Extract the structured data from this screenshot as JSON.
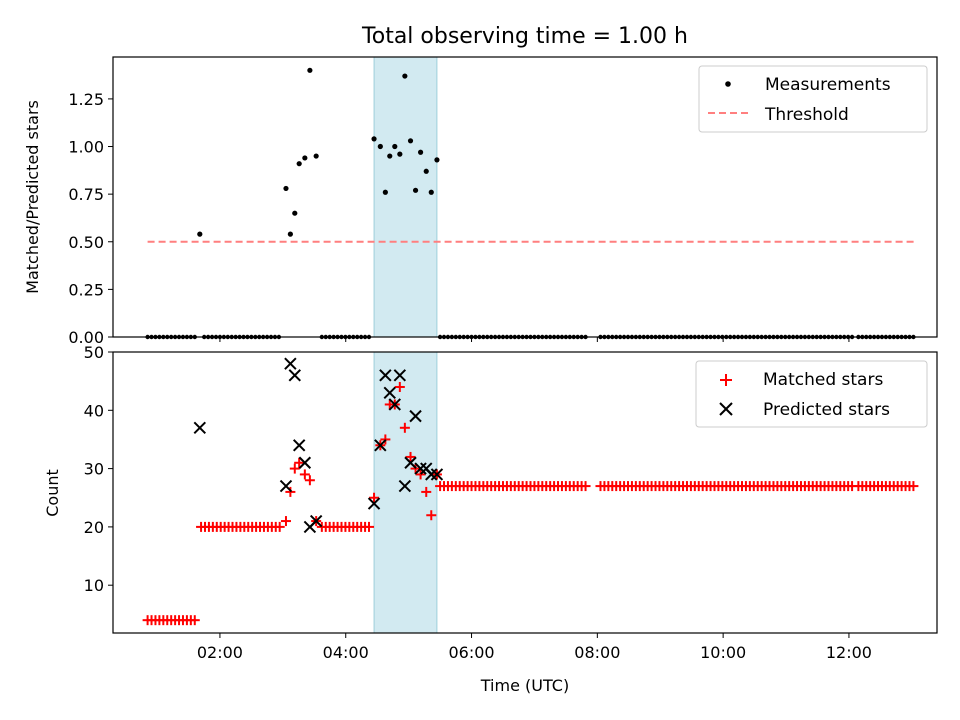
{
  "chart_data": {
    "type": "scatter",
    "title": "Total observing time = 1.00 h",
    "xlabel": "Time (UTC)",
    "x_ticks": [
      "02:00",
      "04:00",
      "06:00",
      "08:00",
      "10:00",
      "12:00"
    ],
    "x_tick_hours": [
      2,
      4,
      6,
      8,
      10,
      12
    ],
    "x_range_hours": [
      0.3,
      13.4
    ],
    "highlight_span_hours": [
      4.45,
      5.45
    ],
    "colors": {
      "highlight": "#add8e6",
      "measurements": "#000000",
      "threshold": "#ff7f7f",
      "matched": "#ff0000",
      "predicted": "#000000"
    },
    "panels": [
      {
        "id": "ratio",
        "ylabel": "Matched/Predicted stars",
        "ylim": [
          0,
          1.47
        ],
        "y_ticks": [
          0.0,
          0.25,
          0.5,
          0.75,
          1.0,
          1.25
        ],
        "y_tick_labels": [
          "0.00",
          "0.25",
          "0.50",
          "0.75",
          "1.00",
          "1.25"
        ],
        "legend_position": "upper-right",
        "legend": [
          "Measurements",
          "Threshold"
        ],
        "threshold": {
          "name": "Threshold",
          "value": 0.5,
          "x_range_hours": [
            0.85,
            13.05
          ]
        },
        "measurements_nonzero": [
          [
            1.68,
            0.54
          ],
          [
            3.05,
            0.78
          ],
          [
            3.12,
            0.54
          ],
          [
            3.19,
            0.65
          ],
          [
            3.26,
            0.91
          ],
          [
            3.35,
            0.94
          ],
          [
            3.43,
            1.4
          ],
          [
            3.53,
            0.95
          ],
          [
            4.45,
            1.04
          ],
          [
            4.55,
            1.0
          ],
          [
            4.63,
            0.76
          ],
          [
            4.7,
            0.95
          ],
          [
            4.78,
            1.0
          ],
          [
            4.86,
            0.96
          ],
          [
            4.94,
            1.37
          ],
          [
            5.03,
            1.03
          ],
          [
            5.11,
            0.77
          ],
          [
            5.19,
            0.97
          ],
          [
            5.28,
            0.87
          ],
          [
            5.36,
            0.76
          ],
          [
            5.45,
            0.93
          ]
        ],
        "zero_segments_hours": [
          [
            0.85,
            1.62
          ],
          [
            1.75,
            2.97
          ],
          [
            3.62,
            4.4
          ],
          [
            5.5,
            7.85
          ],
          [
            8.05,
            12.05
          ],
          [
            12.15,
            13.05
          ]
        ]
      },
      {
        "id": "counts",
        "ylabel": "Count",
        "ylim": [
          1.8,
          50
        ],
        "y_ticks": [
          10,
          20,
          30,
          40,
          50
        ],
        "y_tick_labels": [
          "10",
          "20",
          "30",
          "40",
          "50"
        ],
        "legend_position": "upper-right",
        "legend": [
          "Matched stars",
          "Predicted stars"
        ],
        "baseline_series": [
          {
            "value": 4,
            "x_range_hours": [
              0.85,
              1.62
            ]
          },
          {
            "value": 20,
            "x_range_hours": [
              1.7,
              2.97
            ]
          },
          {
            "value": 20,
            "x_range_hours": [
              3.62,
              4.4
            ]
          },
          {
            "value": 27,
            "x_range_hours": [
              5.5,
              7.85
            ]
          },
          {
            "value": 27,
            "x_range_hours": [
              8.05,
              12.05
            ]
          },
          {
            "value": 27,
            "x_range_hours": [
              12.15,
              13.05
            ]
          }
        ],
        "matched": [
          [
            3.05,
            21
          ],
          [
            3.12,
            26
          ],
          [
            3.19,
            30
          ],
          [
            3.26,
            31
          ],
          [
            3.35,
            29
          ],
          [
            3.43,
            28
          ],
          [
            3.53,
            21
          ],
          [
            4.45,
            25
          ],
          [
            4.55,
            34
          ],
          [
            4.63,
            35
          ],
          [
            4.7,
            41
          ],
          [
            4.78,
            41
          ],
          [
            4.86,
            44
          ],
          [
            4.94,
            37
          ],
          [
            5.03,
            32
          ],
          [
            5.11,
            30
          ],
          [
            5.19,
            29
          ],
          [
            5.28,
            26
          ],
          [
            5.36,
            22
          ],
          [
            5.45,
            29
          ]
        ],
        "predicted": [
          [
            1.68,
            37
          ],
          [
            3.05,
            27
          ],
          [
            3.12,
            48
          ],
          [
            3.19,
            46
          ],
          [
            3.26,
            34
          ],
          [
            3.35,
            31
          ],
          [
            3.43,
            20
          ],
          [
            3.53,
            21
          ],
          [
            4.45,
            24
          ],
          [
            4.55,
            34
          ],
          [
            4.63,
            46
          ],
          [
            4.7,
            43
          ],
          [
            4.78,
            41
          ],
          [
            4.86,
            46
          ],
          [
            4.94,
            27
          ],
          [
            5.03,
            31
          ],
          [
            5.11,
            39
          ],
          [
            5.19,
            30
          ],
          [
            5.28,
            30
          ],
          [
            5.36,
            29
          ],
          [
            5.45,
            29
          ]
        ]
      }
    ]
  }
}
